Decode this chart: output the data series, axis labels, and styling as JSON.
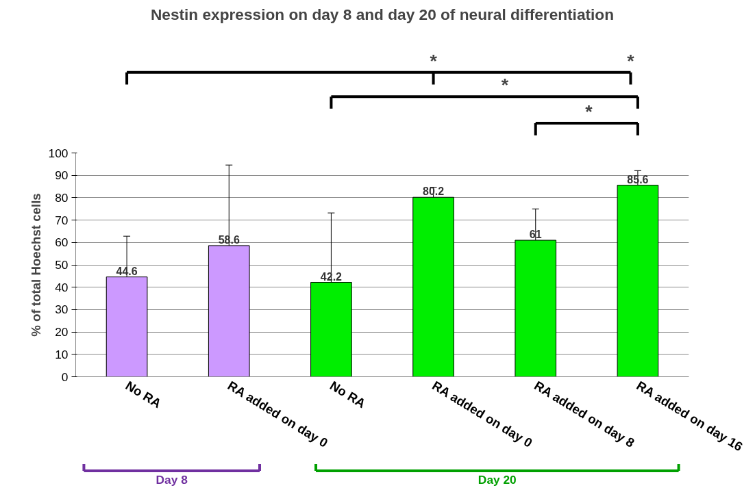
{
  "chart_data": {
    "type": "bar",
    "title": "Nestin expression on day 8 and day 20 of neural differentiation",
    "ylabel": "% of total Hoechst cells",
    "categories": [
      "No RA",
      "RA added on day 0",
      "No RA",
      "RA added on day 0",
      "RA added on day 8",
      "RA added on day 16"
    ],
    "values": [
      44.6,
      58.6,
      42.2,
      80.2,
      61,
      85.6
    ],
    "colors": [
      "#cc99ff",
      "#cc99ff",
      "#00ee00",
      "#00ee00",
      "#00ee00",
      "#00ee00"
    ],
    "errors": [
      18.2,
      36,
      31,
      4.5,
      14,
      6.5
    ],
    "data_labels": true,
    "ylim": [
      0,
      100
    ],
    "yticks": [
      0,
      10,
      20,
      30,
      40,
      50,
      60,
      70,
      80,
      90,
      100
    ],
    "grid": "y",
    "annotations": [
      "*",
      "*",
      "*",
      "*",
      "Day 8",
      "Day 20"
    ]
  }
}
